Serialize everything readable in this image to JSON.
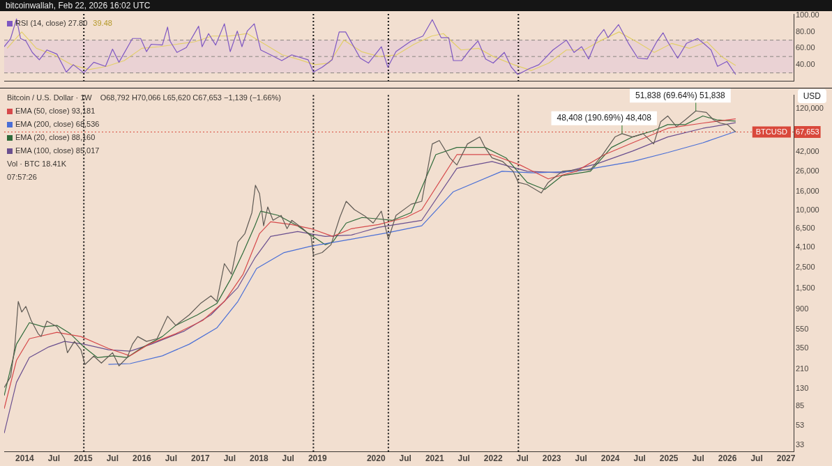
{
  "chart_data": [
    {
      "type": "line",
      "title": "bitcoinwallah, Feb 22, 2026 16:02 UTC",
      "legend": "top left",
      "marker": "none",
      "grid": false,
      "tick_labels": "y",
      "xlim": [
        2013.65,
        2027.13
      ],
      "ylim": [
        20,
        102
      ],
      "yticks": [
        {
          "value": 40,
          "label": "40.00"
        },
        {
          "value": 60,
          "label": "60.00"
        },
        {
          "value": 80,
          "label": "80.00"
        },
        {
          "value": 100,
          "label": "100.00"
        }
      ],
      "bands": [
        {
          "axis": "y",
          "from": 30,
          "to": 70,
          "color": "#ead2d4"
        }
      ],
      "ref_lines": [
        {
          "axis": "y",
          "value": 70,
          "line_style": "dashed",
          "color": "#8a8580"
        },
        {
          "axis": "y",
          "value": 50,
          "line_style": "dashed",
          "color": "#8a8580"
        },
        {
          "axis": "y",
          "value": 30,
          "line_style": "dashed",
          "color": "#8a8580"
        },
        {
          "axis": "x",
          "value": 2015.01,
          "line_style": "dotted",
          "color": "#111111"
        },
        {
          "axis": "x",
          "value": 2018.93,
          "line_style": "dotted",
          "color": "#111111"
        },
        {
          "axis": "x",
          "value": 2020.21,
          "line_style": "dotted",
          "color": "#111111"
        },
        {
          "axis": "x",
          "value": 2022.43,
          "line_style": "dotted",
          "color": "#111111"
        }
      ],
      "annotations": [
        "39.48"
      ],
      "series": [
        {
          "name": "RSI (14, close) 27.80",
          "color": "#7e57c2",
          "x": [
            2013.65,
            2013.76,
            2013.86,
            2013.93,
            2014.02,
            2014.13,
            2014.25,
            2014.38,
            2014.55,
            2014.71,
            2014.83,
            2015.01,
            2015.18,
            2015.38,
            2015.5,
            2015.61,
            2015.84,
            2015.98,
            2016.08,
            2016.16,
            2016.35,
            2016.44,
            2016.48,
            2016.6,
            2016.76,
            2016.97,
            2017.03,
            2017.14,
            2017.26,
            2017.41,
            2017.51,
            2017.63,
            2017.71,
            2017.8,
            2017.92,
            2018.03,
            2018.2,
            2018.39,
            2018.56,
            2018.84,
            2018.93,
            2019.08,
            2019.25,
            2019.37,
            2019.48,
            2019.58,
            2019.73,
            2019.87,
            2020.09,
            2020.2,
            2020.34,
            2020.6,
            2020.8,
            2020.96,
            2021.11,
            2021.24,
            2021.32,
            2021.46,
            2021.6,
            2021.74,
            2021.87,
            2022.0,
            2022.19,
            2022.31,
            2022.42,
            2022.61,
            2022.78,
            2023.02,
            2023.25,
            2023.38,
            2023.51,
            2023.63,
            2023.78,
            2023.89,
            2023.96,
            2024.14,
            2024.31,
            2024.47,
            2024.63,
            2024.8,
            2024.9,
            2024.98,
            2025.15,
            2025.3,
            2025.49,
            2025.61,
            2025.72,
            2025.83,
            2025.99,
            2026.14
          ],
          "values": [
            62,
            72,
            96,
            72,
            69,
            55,
            46,
            58,
            53,
            31,
            40,
            30,
            43,
            38,
            59,
            43,
            72,
            72,
            56,
            65,
            64,
            86,
            69,
            55,
            61,
            87,
            62,
            78,
            64,
            90,
            56,
            81,
            62,
            81,
            90,
            58,
            52,
            45,
            52,
            46,
            31,
            37,
            46,
            80,
            80,
            67,
            48,
            42,
            62,
            37,
            56,
            69,
            75,
            95,
            73,
            73,
            45,
            45,
            58,
            69,
            47,
            42,
            55,
            37,
            28,
            35,
            40,
            58,
            70,
            55,
            62,
            47,
            73,
            83,
            73,
            89,
            66,
            48,
            47,
            69,
            79,
            68,
            48,
            66,
            72,
            65,
            58,
            38,
            44,
            28
          ]
        },
        {
          "color": "#e3cf6a",
          "x": [
            2013.7,
            2013.95,
            2014.2,
            2014.5,
            2014.8,
            2015.1,
            2015.4,
            2015.7,
            2016.0,
            2016.3,
            2016.6,
            2016.9,
            2017.2,
            2017.5,
            2017.8,
            2018.1,
            2018.4,
            2018.7,
            2018.95,
            2019.2,
            2019.45,
            2019.75,
            2020.05,
            2020.35,
            2020.65,
            2020.95,
            2021.15,
            2021.45,
            2021.75,
            2022.0,
            2022.35,
            2022.65,
            2022.95,
            2023.25,
            2023.55,
            2023.85,
            2024.15,
            2024.45,
            2024.75,
            2025.05,
            2025.35,
            2025.65,
            2025.9,
            2026.14
          ],
          "values": [
            60,
            80,
            60,
            52,
            40,
            34,
            38,
            45,
            60,
            62,
            65,
            68,
            75,
            75,
            78,
            65,
            52,
            46,
            40,
            42,
            70,
            56,
            50,
            52,
            65,
            75,
            78,
            58,
            60,
            50,
            40,
            33,
            42,
            58,
            58,
            70,
            80,
            68,
            55,
            66,
            60,
            68,
            50,
            39
          ]
        }
      ]
    },
    {
      "type": "line",
      "title": "Bitcoin / U.S. Dollar · 1W",
      "subtitle": "O68,792  H70,066  L65,620  C67,653  −1,139 (−1.66%)",
      "ylabel": "USD",
      "legend": "top left",
      "marker": "none",
      "grid": false,
      "log": "y",
      "xlim": [
        2013.65,
        2027.13
      ],
      "ylim": [
        28,
        166000
      ],
      "xticks": [
        {
          "value": 2014,
          "label": "2014"
        },
        {
          "value": 2014.5,
          "label": "Jul"
        },
        {
          "value": 2015,
          "label": "2015"
        },
        {
          "value": 2015.5,
          "label": "Jul"
        },
        {
          "value": 2016,
          "label": "2016"
        },
        {
          "value": 2016.5,
          "label": "Jul"
        },
        {
          "value": 2017,
          "label": "2017"
        },
        {
          "value": 2017.5,
          "label": "Jul"
        },
        {
          "value": 2018,
          "label": "2018"
        },
        {
          "value": 2018.5,
          "label": "Jul"
        },
        {
          "value": 2019,
          "label": "2019"
        },
        {
          "value": 2020,
          "label": "2020"
        },
        {
          "value": 2020.5,
          "label": "Jul"
        },
        {
          "value": 2021,
          "label": "2021"
        },
        {
          "value": 2021.5,
          "label": "Jul"
        },
        {
          "value": 2022,
          "label": "2022"
        },
        {
          "value": 2022.5,
          "label": "Jul"
        },
        {
          "value": 2023,
          "label": "2023"
        },
        {
          "value": 2023.5,
          "label": "Jul"
        },
        {
          "value": 2024,
          "label": "2024"
        },
        {
          "value": 2024.5,
          "label": "Jul"
        },
        {
          "value": 2025,
          "label": "2025"
        },
        {
          "value": 2025.5,
          "label": "Jul"
        },
        {
          "value": 2026,
          "label": "2026"
        },
        {
          "value": 2026.5,
          "label": "Jul"
        },
        {
          "value": 2027,
          "label": "2027"
        }
      ],
      "yticks": [
        33,
        53,
        85,
        130,
        210,
        350,
        550,
        900,
        {
          "value": 1500,
          "label": "1,500"
        },
        {
          "value": 2500,
          "label": "2,500"
        },
        {
          "value": 4100,
          "label": "4,100"
        },
        {
          "value": 6500,
          "label": "6,500"
        },
        {
          "value": 10000,
          "label": "10,000"
        },
        {
          "value": 16000,
          "label": "16,000"
        },
        {
          "value": 26000,
          "label": "26,000"
        },
        {
          "value": 42000,
          "label": "42,000"
        },
        {
          "value": 67653,
          "label": "67,653"
        },
        {
          "value": 120000,
          "label": "120,000"
        }
      ],
      "ref_lines": [
        {
          "axis": "y",
          "value": 67653,
          "label": "BTCUSD",
          "line_style": "dotted",
          "color": "#d9483b"
        },
        {
          "axis": "x",
          "value": 2015.01,
          "line_style": "dotted",
          "color": "#111111"
        },
        {
          "axis": "x",
          "value": 2018.93,
          "line_style": "dotted",
          "color": "#111111"
        },
        {
          "axis": "x",
          "value": 2020.21,
          "line_style": "dotted",
          "color": "#111111"
        },
        {
          "axis": "x",
          "value": 2022.43,
          "line_style": "dotted",
          "color": "#111111"
        }
      ],
      "annotations": [
        "Vol · BTC 18.41K",
        "07:57:26",
        {
          "text": "48,408 (190.69%) 48,408",
          "x": 2024.2,
          "y": 65000
        },
        {
          "text": "51,838 (69.64%) 51,838",
          "x": 2025.46,
          "y": 113000
        }
      ],
      "series": [
        {
          "color": "#5f5a54",
          "x": [
            2013.65,
            2013.76,
            2013.83,
            2013.89,
            2013.95,
            2014.02,
            2014.11,
            2014.23,
            2014.28,
            2014.38,
            2014.55,
            2014.68,
            2014.73,
            2014.85,
            2014.96,
            2015.03,
            2015.18,
            2015.31,
            2015.5,
            2015.61,
            2015.75,
            2015.84,
            2015.93,
            2016.08,
            2016.26,
            2016.44,
            2016.58,
            2016.81,
            2017.0,
            2017.18,
            2017.28,
            2017.41,
            2017.53,
            2017.64,
            2017.76,
            2017.88,
            2017.94,
            2018.01,
            2018.08,
            2018.15,
            2018.24,
            2018.38,
            2018.48,
            2018.56,
            2018.75,
            2018.89,
            2018.93,
            2019.08,
            2019.23,
            2019.38,
            2019.49,
            2019.63,
            2019.81,
            2019.95,
            2020.09,
            2020.21,
            2020.34,
            2020.6,
            2020.78,
            2020.96,
            2021.08,
            2021.26,
            2021.38,
            2021.56,
            2021.77,
            2021.86,
            2021.98,
            2022.16,
            2022.34,
            2022.43,
            2022.58,
            2022.82,
            2022.94,
            2023.18,
            2023.42,
            2023.66,
            2023.87,
            2024.08,
            2024.2,
            2024.38,
            2024.56,
            2024.74,
            2024.86,
            2024.98,
            2025.13,
            2025.28,
            2025.46,
            2025.64,
            2025.76,
            2025.88,
            2026.0,
            2026.14
          ],
          "values": [
            134,
            175,
            360,
            1090,
            843,
            966,
            687,
            497,
            464,
            676,
            589,
            440,
            313,
            412,
            336,
            235,
            288,
            243,
            313,
            227,
            278,
            385,
            464,
            412,
            440,
            761,
            609,
            787,
            1035,
            1250,
            1090,
            2740,
            2120,
            4640,
            5700,
            9500,
            18500,
            15070,
            6880,
            10900,
            7870,
            8870,
            6420,
            7870,
            6420,
            5320,
            3360,
            3590,
            4340,
            8430,
            12500,
            10200,
            8720,
            7360,
            9840,
            4970,
            8870,
            11660,
            12500,
            50600,
            55000,
            36000,
            30300,
            50600,
            60000,
            46500,
            36000,
            33000,
            26000,
            19800,
            18800,
            15300,
            19800,
            26000,
            26900,
            26900,
            39000,
            60000,
            65000,
            60000,
            65000,
            50600,
            87000,
            100000,
            77000,
            91000,
            113000,
            109000,
            91000,
            84000,
            81000,
            67653
          ]
        },
        {
          "name": "EMA (50, close) 93,181",
          "color": "#d6494b",
          "x": [
            2013.65,
            2013.86,
            2014.08,
            2014.55,
            2014.96,
            2015.43,
            2015.8,
            2016.12,
            2016.58,
            2017.04,
            2017.41,
            2017.73,
            2018.01,
            2018.2,
            2018.56,
            2018.89,
            2019.26,
            2019.58,
            2020.04,
            2020.51,
            2020.78,
            2021.38,
            2021.98,
            2022.46,
            2022.94,
            2023.42,
            2023.9,
            2024.38,
            2024.98,
            2025.58,
            2026.14
          ],
          "values": [
            80,
            260,
            440,
            514,
            464,
            347,
            290,
            385,
            497,
            687,
            1090,
            2120,
            5700,
            7600,
            7100,
            6420,
            5320,
            6420,
            7100,
            8430,
            10200,
            39000,
            39000,
            30300,
            21600,
            26000,
            39000,
            52000,
            74000,
            84000,
            93181
          ]
        },
        {
          "name": "EMA (200, close) 68,536",
          "color": "#4a6fd6",
          "x": [
            2015.43,
            2015.8,
            2016.35,
            2016.81,
            2017.28,
            2017.64,
            2017.96,
            2018.43,
            2018.89,
            2019.58,
            2020.18,
            2020.78,
            2021.32,
            2022.15,
            2022.7,
            2023.42,
            2024.38,
            2024.98,
            2025.58,
            2026.14
          ],
          "values": [
            235,
            240,
            290,
            385,
            572,
            1090,
            2430,
            3590,
            4190,
            4970,
            5790,
            6880,
            15800,
            26000,
            25000,
            26000,
            33000,
            41000,
            52000,
            68536
          ]
        },
        {
          "name": "EMA (20, close) 88,160",
          "color": "#2f6b3a",
          "x": [
            2013.65,
            2013.86,
            2014.08,
            2014.32,
            2014.55,
            2014.78,
            2015.01,
            2015.24,
            2015.52,
            2015.75,
            2015.98,
            2016.35,
            2016.58,
            2016.95,
            2017.28,
            2017.51,
            2017.73,
            2017.93,
            2018.03,
            2018.33,
            2018.66,
            2018.89,
            2019.13,
            2019.26,
            2019.49,
            2019.76,
            2020.04,
            2020.28,
            2020.6,
            2021.02,
            2021.38,
            2021.86,
            2022.22,
            2022.58,
            2022.88,
            2023.18,
            2023.66,
            2024.02,
            2024.38,
            2024.74,
            2024.98,
            2025.28,
            2025.58,
            2025.82,
            2026.14
          ],
          "values": [
            110,
            385,
            650,
            589,
            609,
            497,
            360,
            278,
            290,
            278,
            347,
            464,
            609,
            787,
            1035,
            1850,
            3590,
            6880,
            9840,
            8870,
            6880,
            5500,
            4340,
            4640,
            7360,
            8430,
            8150,
            7870,
            9500,
            39000,
            46500,
            46500,
            36000,
            19800,
            16700,
            23400,
            26000,
            46500,
            60000,
            70000,
            81000,
            81000,
            100000,
            91000,
            88160
          ]
        },
        {
          "name": "EMA (100, close) 85,017",
          "color": "#6a4f8f",
          "x": [
            2013.65,
            2013.86,
            2014.08,
            2014.41,
            2014.68,
            2015.01,
            2015.43,
            2015.8,
            2016.16,
            2016.73,
            2017.18,
            2017.64,
            2017.93,
            2018.2,
            2018.66,
            2019.13,
            2019.58,
            2020.04,
            2020.78,
            2021.38,
            2021.98,
            2022.58,
            2023.18,
            2023.78,
            2024.38,
            2024.98,
            2025.58,
            2026.14
          ],
          "values": [
            44,
            152,
            278,
            360,
            412,
            385,
            336,
            325,
            385,
            532,
            787,
            1530,
            3140,
            5320,
            5990,
            5320,
            5500,
            6640,
            7870,
            27900,
            33000,
            26000,
            25000,
            31300,
            42500,
            60000,
            74000,
            85017
          ]
        }
      ]
    }
  ]
}
